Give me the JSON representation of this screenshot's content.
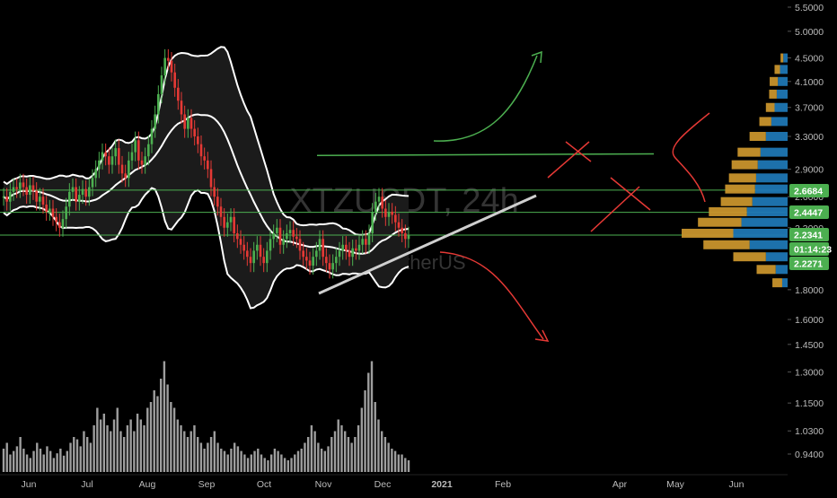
{
  "chart_data": {
    "type": "candlestick",
    "symbol_watermark": "XTZUSDT, 24h",
    "symbol_subtitle": "Tezos / TetherUS",
    "x_labels": [
      "Jun",
      "Jul",
      "Aug",
      "Sep",
      "Oct",
      "Nov",
      "Dec",
      "2021",
      "Feb",
      "Apr",
      "May",
      "Jun"
    ],
    "y_scale": "log",
    "y_ticks": [
      5.5,
      5.0,
      4.5,
      4.1,
      3.7,
      3.3,
      2.9,
      2.6,
      2.3,
      1.8,
      1.6,
      1.45,
      1.3,
      1.15,
      1.03,
      0.94
    ],
    "y_tick_labels": [
      "5.5000",
      "5.0000",
      "4.5000",
      "4.1000",
      "3.7000",
      "3.3000",
      "2.9000",
      "2.6000",
      "2.3000",
      "1.8000",
      "1.6000",
      "1.4500",
      "1.3000",
      "1.1500",
      "1.0300",
      "0.9400"
    ],
    "price_badges": [
      {
        "label": "2.6684",
        "color": "#4caf50"
      },
      {
        "label": "2.4447",
        "color": "#4caf50"
      },
      {
        "label": "2.2341",
        "color": "#4caf50"
      },
      {
        "label": "01:14:23",
        "color": "#4caf50"
      },
      {
        "label": "2.2271",
        "color": "#4caf50"
      }
    ],
    "horizontal_levels": [
      2.6684,
      2.4447,
      2.2341
    ],
    "close_series": [
      2.6,
      2.55,
      2.65,
      2.7,
      2.68,
      2.75,
      2.7,
      2.62,
      2.72,
      2.66,
      2.55,
      2.6,
      2.52,
      2.45,
      2.48,
      2.4,
      2.35,
      2.3,
      2.38,
      2.5,
      2.65,
      2.7,
      2.55,
      2.62,
      2.68,
      2.6,
      2.7,
      2.8,
      2.9,
      3.0,
      3.1,
      3.05,
      2.95,
      3.05,
      3.15,
      2.95,
      2.85,
      2.8,
      3.0,
      3.1,
      3.25,
      3.0,
      2.95,
      3.05,
      3.2,
      3.4,
      3.6,
      3.9,
      4.2,
      4.5,
      4.45,
      4.25,
      4.0,
      3.8,
      3.6,
      3.4,
      3.55,
      3.4,
      3.3,
      3.2,
      3.05,
      3.0,
      2.9,
      2.7,
      2.6,
      2.5,
      2.4,
      2.3,
      2.35,
      2.4,
      2.25,
      2.2,
      2.15,
      2.1,
      2.05,
      2.0,
      2.1,
      2.15,
      2.05,
      2.0,
      2.1,
      2.2,
      2.25,
      2.3,
      2.15,
      2.2,
      2.25,
      2.28,
      2.22,
      2.2,
      2.1,
      2.05,
      2.02,
      1.98,
      2.05,
      2.1,
      2.2,
      2.05,
      2.0,
      1.95,
      2.0,
      2.05,
      2.1,
      2.15,
      2.1,
      2.05,
      2.12,
      2.1,
      2.15,
      2.2,
      2.15,
      2.25,
      2.45,
      2.55,
      2.6,
      2.48,
      2.4,
      2.45,
      2.42,
      2.35,
      2.3,
      2.25,
      2.2,
      2.23
    ],
    "volume_series": [
      0.2,
      0.25,
      0.15,
      0.18,
      0.22,
      0.3,
      0.2,
      0.15,
      0.12,
      0.18,
      0.25,
      0.2,
      0.15,
      0.22,
      0.18,
      0.12,
      0.16,
      0.2,
      0.14,
      0.18,
      0.25,
      0.3,
      0.28,
      0.22,
      0.35,
      0.3,
      0.25,
      0.4,
      0.55,
      0.45,
      0.5,
      0.4,
      0.35,
      0.45,
      0.55,
      0.35,
      0.3,
      0.4,
      0.45,
      0.35,
      0.5,
      0.45,
      0.4,
      0.55,
      0.6,
      0.7,
      0.65,
      0.8,
      0.95,
      0.75,
      0.6,
      0.55,
      0.45,
      0.4,
      0.35,
      0.3,
      0.35,
      0.4,
      0.3,
      0.25,
      0.2,
      0.25,
      0.3,
      0.35,
      0.25,
      0.2,
      0.18,
      0.15,
      0.2,
      0.25,
      0.22,
      0.18,
      0.15,
      0.12,
      0.15,
      0.18,
      0.2,
      0.15,
      0.12,
      0.1,
      0.15,
      0.2,
      0.18,
      0.15,
      0.12,
      0.1,
      0.12,
      0.15,
      0.18,
      0.2,
      0.25,
      0.3,
      0.4,
      0.35,
      0.25,
      0.2,
      0.18,
      0.22,
      0.3,
      0.35,
      0.45,
      0.4,
      0.35,
      0.3,
      0.25,
      0.3,
      0.4,
      0.55,
      0.7,
      0.85,
      0.95,
      0.6,
      0.45,
      0.35,
      0.3,
      0.25,
      0.2,
      0.18,
      0.15,
      0.15,
      0.12,
      0.1
    ],
    "volume_profile": [
      {
        "price": 4.5,
        "buy": 0.08,
        "sell": 0.05
      },
      {
        "price": 4.3,
        "buy": 0.14,
        "sell": 0.1
      },
      {
        "price": 4.1,
        "buy": 0.18,
        "sell": 0.15
      },
      {
        "price": 3.9,
        "buy": 0.2,
        "sell": 0.14
      },
      {
        "price": 3.7,
        "buy": 0.24,
        "sell": 0.16
      },
      {
        "price": 3.5,
        "buy": 0.3,
        "sell": 0.22
      },
      {
        "price": 3.3,
        "buy": 0.4,
        "sell": 0.3
      },
      {
        "price": 3.1,
        "buy": 0.5,
        "sell": 0.42
      },
      {
        "price": 2.95,
        "buy": 0.55,
        "sell": 0.48
      },
      {
        "price": 2.8,
        "buy": 0.58,
        "sell": 0.5
      },
      {
        "price": 2.68,
        "buy": 0.6,
        "sell": 0.55
      },
      {
        "price": 2.55,
        "buy": 0.65,
        "sell": 0.58
      },
      {
        "price": 2.45,
        "buy": 0.75,
        "sell": 0.7
      },
      {
        "price": 2.35,
        "buy": 0.85,
        "sell": 0.8
      },
      {
        "price": 2.25,
        "buy": 1.0,
        "sell": 0.95
      },
      {
        "price": 2.15,
        "buy": 0.7,
        "sell": 0.85
      },
      {
        "price": 2.05,
        "buy": 0.4,
        "sell": 0.6
      },
      {
        "price": 1.95,
        "buy": 0.22,
        "sell": 0.35
      },
      {
        "price": 1.85,
        "buy": 0.1,
        "sell": 0.18
      }
    ],
    "colors": {
      "background": "#000000",
      "up_candle": "#4caf50",
      "down_candle": "#e53935",
      "bands": "#ffffff",
      "band_fill": "#1b1b1b",
      "level_lines": "#4caf50",
      "trendline": "#cfcfcf",
      "bull_arrow": "#4caf50",
      "bear_arrow": "#e53935",
      "profile_buy": "#1f77b4",
      "profile_sell": "#c8942c",
      "volume_bars": "#9e9e9e",
      "axis_text": "#bbbbbb"
    }
  }
}
